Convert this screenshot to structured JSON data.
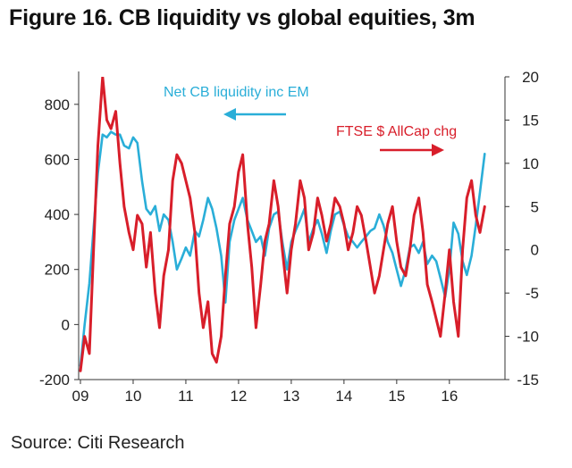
{
  "title": "Figure 16. CB liquidity vs global equities, 3m",
  "source": "Source: Citi Research",
  "chart_data": {
    "type": "line",
    "title": "Figure 16. CB liquidity vs global equities, 3m",
    "x_tick_labels": [
      "09",
      "10",
      "11",
      "12",
      "13",
      "14",
      "15",
      "16"
    ],
    "x_ticks": [
      2009,
      2010,
      2011,
      2012,
      2013,
      2014,
      2015,
      2016
    ],
    "xlim": [
      2009.0,
      2016.8
    ],
    "left_axis": {
      "ylim": [
        -200,
        900
      ],
      "ticks": [
        -200,
        0,
        200,
        400,
        600,
        800
      ],
      "tick_labels": [
        "-200",
        "0",
        "200",
        "400",
        "600",
        "800"
      ]
    },
    "right_axis": {
      "ylim": [
        -15,
        20
      ],
      "ticks": [
        -15,
        -10,
        -5,
        0,
        5,
        10,
        15,
        20
      ],
      "tick_labels": [
        "-15",
        "-10",
        "-5",
        "0",
        "5",
        "10",
        "15",
        "20"
      ]
    },
    "annotations": {
      "cb_label": "Net CB liquidity inc EM",
      "ftse_label": "FTSE $ AllCap chg",
      "cb_arrow": "left",
      "ftse_arrow": "right"
    },
    "series": [
      {
        "name": "Net CB liquidity inc EM",
        "axis": "left",
        "color": "#2aaed8",
        "x": [
          2009.0,
          2009.08,
          2009.17,
          2009.25,
          2009.33,
          2009.42,
          2009.5,
          2009.58,
          2009.67,
          2009.75,
          2009.83,
          2009.92,
          2010.0,
          2010.08,
          2010.17,
          2010.25,
          2010.33,
          2010.42,
          2010.5,
          2010.58,
          2010.67,
          2010.75,
          2010.83,
          2010.92,
          2011.0,
          2011.08,
          2011.17,
          2011.25,
          2011.33,
          2011.42,
          2011.5,
          2011.58,
          2011.67,
          2011.75,
          2011.83,
          2011.92,
          2012.0,
          2012.08,
          2012.17,
          2012.25,
          2012.33,
          2012.42,
          2012.5,
          2012.58,
          2012.67,
          2012.75,
          2012.83,
          2012.92,
          2013.0,
          2013.08,
          2013.17,
          2013.25,
          2013.33,
          2013.42,
          2013.5,
          2013.58,
          2013.67,
          2013.75,
          2013.83,
          2013.92,
          2014.0,
          2014.08,
          2014.17,
          2014.25,
          2014.33,
          2014.42,
          2014.5,
          2014.58,
          2014.67,
          2014.75,
          2014.83,
          2014.92,
          2015.0,
          2015.08,
          2015.17,
          2015.25,
          2015.33,
          2015.42,
          2015.5,
          2015.58,
          2015.67,
          2015.75,
          2015.83,
          2015.92,
          2016.0,
          2016.08,
          2016.17,
          2016.25,
          2016.33,
          2016.42,
          2016.5,
          2016.58,
          2016.67
        ],
        "values": [
          -150,
          0,
          150,
          350,
          550,
          690,
          680,
          700,
          690,
          690,
          650,
          640,
          680,
          660,
          520,
          420,
          400,
          430,
          340,
          400,
          380,
          300,
          200,
          240,
          280,
          250,
          340,
          320,
          380,
          460,
          420,
          350,
          250,
          80,
          300,
          380,
          420,
          460,
          380,
          340,
          300,
          320,
          250,
          350,
          400,
          410,
          300,
          200,
          300,
          340,
          380,
          420,
          300,
          350,
          380,
          330,
          260,
          340,
          400,
          410,
          360,
          320,
          300,
          280,
          300,
          320,
          340,
          350,
          400,
          360,
          300,
          260,
          200,
          140,
          200,
          280,
          290,
          260,
          300,
          220,
          250,
          230,
          170,
          100,
          200,
          370,
          330,
          230,
          180,
          250,
          360,
          480,
          620
        ]
      },
      {
        "name": "FTSE $ AllCap chg",
        "axis": "right",
        "color": "#d81e2a",
        "x": [
          2009.0,
          2009.08,
          2009.17,
          2009.25,
          2009.33,
          2009.42,
          2009.5,
          2009.58,
          2009.67,
          2009.75,
          2009.83,
          2009.92,
          2010.0,
          2010.08,
          2010.17,
          2010.25,
          2010.33,
          2010.42,
          2010.5,
          2010.58,
          2010.67,
          2010.75,
          2010.83,
          2010.92,
          2011.0,
          2011.08,
          2011.17,
          2011.25,
          2011.33,
          2011.42,
          2011.5,
          2011.58,
          2011.67,
          2011.75,
          2011.83,
          2011.92,
          2012.0,
          2012.08,
          2012.17,
          2012.25,
          2012.33,
          2012.42,
          2012.5,
          2012.58,
          2012.67,
          2012.75,
          2012.83,
          2012.92,
          2013.0,
          2013.08,
          2013.17,
          2013.25,
          2013.33,
          2013.42,
          2013.5,
          2013.58,
          2013.67,
          2013.75,
          2013.83,
          2013.92,
          2014.0,
          2014.08,
          2014.17,
          2014.25,
          2014.33,
          2014.42,
          2014.5,
          2014.58,
          2014.67,
          2014.75,
          2014.83,
          2014.92,
          2015.0,
          2015.08,
          2015.17,
          2015.25,
          2015.33,
          2015.42,
          2015.5,
          2015.58,
          2015.67,
          2015.75,
          2015.83,
          2015.92,
          2016.0,
          2016.08,
          2016.17,
          2016.25,
          2016.33,
          2016.42,
          2016.5,
          2016.58,
          2016.67
        ],
        "values": [
          -14,
          -10,
          -12,
          0,
          12,
          20,
          15,
          14,
          16,
          10,
          5,
          2,
          0,
          4,
          3,
          -2,
          2,
          -5,
          -9,
          -3,
          0,
          8,
          11,
          10,
          8,
          6,
          2,
          -5,
          -9,
          -6,
          -12,
          -13,
          -10,
          -3,
          3,
          5,
          9,
          11,
          3,
          -2,
          -9,
          -4,
          1,
          3,
          8,
          5,
          0,
          -5,
          0,
          3,
          8,
          6,
          0,
          2,
          6,
          4,
          1,
          3,
          6,
          5,
          3,
          0,
          2,
          5,
          4,
          1,
          -2,
          -5,
          -3,
          0,
          3,
          5,
          1,
          -2,
          -3,
          0,
          4,
          6,
          2,
          -4,
          -6,
          -8,
          -10,
          -5,
          0,
          -6,
          -10,
          0,
          6,
          8,
          4,
          2,
          5
        ]
      }
    ]
  }
}
